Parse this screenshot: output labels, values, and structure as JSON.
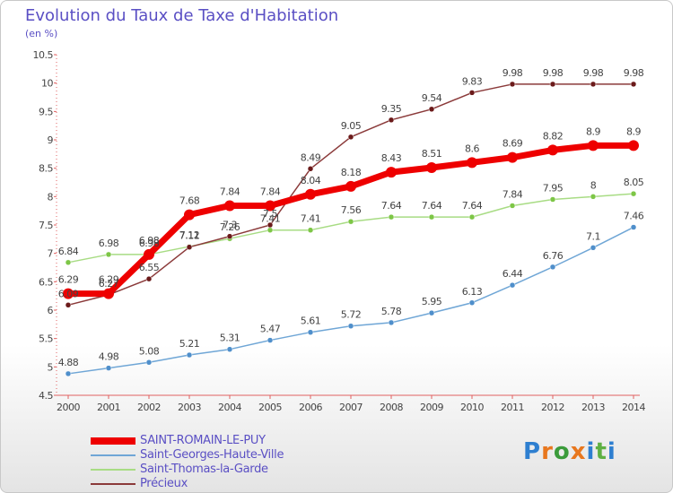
{
  "header": {
    "title": "Evolution du Taux de Taxe d'Habitation",
    "subtitle": "(en %)"
  },
  "logo": {
    "letters": [
      "P",
      "r",
      "o",
      "x",
      "i",
      "t",
      "i"
    ],
    "colors": [
      "#2e7fd0",
      "#e8771e",
      "#3b9b3b",
      "#e8771e",
      "#2e7fd0",
      "#5fb043",
      "#2e7fd0"
    ]
  },
  "chart_data": {
    "type": "line",
    "title": "Evolution du Taux de Taxe d'Habitation",
    "ylabel": "(en %)",
    "x": [
      "2000",
      "2001",
      "2002",
      "2003",
      "2004",
      "2005",
      "2006",
      "2007",
      "2008",
      "2009",
      "2010",
      "2011",
      "2012",
      "2013",
      "2014"
    ],
    "ylim": [
      4.5,
      10.5
    ],
    "yticks": [
      "4.5",
      "5",
      "5.5",
      "6",
      "6.5",
      "7",
      "7.5",
      "8",
      "8.5",
      "9",
      "9.5",
      "10",
      "10.5"
    ],
    "grid": false,
    "legend_position": "bottom-left",
    "series": [
      {
        "name": "SAINT-ROMAIN-LE-PUY",
        "color": "#ee0000",
        "marker_color": "#ee0000",
        "width": 7,
        "marker_radius": 6,
        "values": [
          6.29,
          6.29,
          6.98,
          7.68,
          7.84,
          7.84,
          8.04,
          8.18,
          8.43,
          8.51,
          8.6,
          8.69,
          8.82,
          8.9,
          8.9
        ],
        "labels": [
          "6.29",
          "6.29",
          "6.98",
          "7.68",
          "7.84",
          "7.84",
          "8.04",
          "8.18",
          "8.43",
          "8.51",
          "8.6",
          "8.69",
          "8.82",
          "8.9",
          "8.9"
        ]
      },
      {
        "name": "Saint-Georges-Haute-Ville",
        "color": "#6fa6d6",
        "marker_color": "#4f8fcb",
        "width": 1.5,
        "marker_radius": 3,
        "values": [
          4.88,
          4.98,
          5.08,
          5.21,
          5.31,
          5.47,
          5.61,
          5.72,
          5.78,
          5.95,
          6.13,
          6.44,
          6.76,
          7.1,
          7.46
        ],
        "labels": [
          "4.88",
          "4.98",
          "5.08",
          "5.21",
          "5.31",
          "5.47",
          "5.61",
          "5.72",
          "5.78",
          "5.95",
          "6.13",
          "6.44",
          "6.76",
          "7.1",
          "7.46"
        ]
      },
      {
        "name": "Saint-Thomas-la-Garde",
        "color": "#a8dc84",
        "marker_color": "#7dc646",
        "width": 1.5,
        "marker_radius": 3,
        "values": [
          6.84,
          6.98,
          6.98,
          7.12,
          7.26,
          7.41,
          7.41,
          7.56,
          7.64,
          7.64,
          7.64,
          7.84,
          7.95,
          8,
          8.05
        ],
        "labels": [
          "6.84",
          "6.98",
          "6.98",
          "7.12",
          "7.26",
          "7.41",
          "7.41",
          "7.56",
          "7.64",
          "7.64",
          "7.64",
          "7.84",
          "7.95",
          "8",
          "8.05"
        ]
      },
      {
        "name": "Précieux",
        "color": "#8b3a3a",
        "marker_color": "#6b1a1a",
        "width": 1.5,
        "marker_radius": 3,
        "values": [
          6.09,
          6.27,
          6.55,
          7.11,
          7.3,
          7.5,
          8.49,
          9.05,
          9.35,
          9.54,
          9.83,
          9.98,
          9.98,
          9.98,
          9.98
        ],
        "labels": [
          "6.09",
          "6.27",
          "6.55",
          "7.11",
          "7.3",
          "7.5",
          "8.49",
          "9.05",
          "9.35",
          "9.54",
          "9.83",
          "9.98",
          "9.98",
          "9.98",
          "9.98"
        ]
      }
    ]
  }
}
